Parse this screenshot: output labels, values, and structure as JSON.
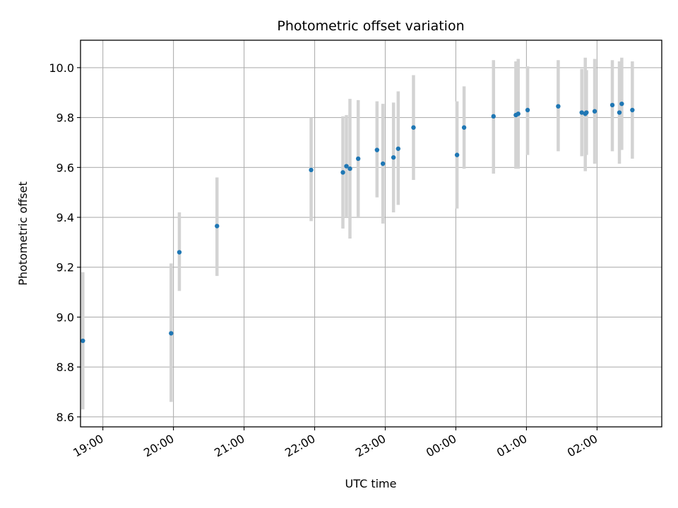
{
  "chart_data": {
    "type": "scatter",
    "title": "Photometric offset variation",
    "xlabel": "UTC time",
    "ylabel": "Photometric offset",
    "x_unit": "UTC datetime (night spanning midnight)",
    "xlim": [
      "18:41",
      "02:55(+1d)"
    ],
    "ylim": [
      8.56,
      10.11
    ],
    "xticks": [
      "19:00",
      "20:00",
      "21:00",
      "22:00",
      "23:00",
      "00:00",
      "01:00",
      "02:00"
    ],
    "yticks": [
      "8.6",
      "8.8",
      "9.0",
      "9.2",
      "9.4",
      "9.6",
      "9.8",
      "10.0"
    ],
    "grid": true,
    "point_color": "#1f77b4",
    "errorbar_color": "#d3d3d3",
    "points": [
      {
        "t": "18:43",
        "y": 8.905,
        "lo": 8.63,
        "hi": 9.18
      },
      {
        "t": "19:58",
        "y": 8.935,
        "lo": 8.66,
        "hi": 9.215
      },
      {
        "t": "20:05",
        "y": 9.26,
        "lo": 9.105,
        "hi": 9.42
      },
      {
        "t": "20:37",
        "y": 9.365,
        "lo": 9.165,
        "hi": 9.56
      },
      {
        "t": "21:57",
        "y": 9.59,
        "lo": 9.385,
        "hi": 9.8
      },
      {
        "t": "22:24",
        "y": 9.58,
        "lo": 9.355,
        "hi": 9.805
      },
      {
        "t": "22:27",
        "y": 9.605,
        "lo": 9.4,
        "hi": 9.81
      },
      {
        "t": "22:30",
        "y": 9.595,
        "lo": 9.315,
        "hi": 9.875
      },
      {
        "t": "22:37",
        "y": 9.635,
        "lo": 9.4,
        "hi": 9.87
      },
      {
        "t": "22:53",
        "y": 9.67,
        "lo": 9.48,
        "hi": 9.865
      },
      {
        "t": "22:58",
        "y": 9.615,
        "lo": 9.375,
        "hi": 9.855
      },
      {
        "t": "23:07",
        "y": 9.64,
        "lo": 9.42,
        "hi": 9.86
      },
      {
        "t": "23:11",
        "y": 9.675,
        "lo": 9.45,
        "hi": 9.905
      },
      {
        "t": "23:24",
        "y": 9.76,
        "lo": 9.55,
        "hi": 9.97
      },
      {
        "t": "00:01",
        "y": 9.65,
        "lo": 9.435,
        "hi": 9.865
      },
      {
        "t": "00:07",
        "y": 9.76,
        "lo": 9.595,
        "hi": 9.925
      },
      {
        "t": "00:32",
        "y": 9.805,
        "lo": 9.575,
        "hi": 10.03
      },
      {
        "t": "00:51",
        "y": 9.81,
        "lo": 9.595,
        "hi": 10.025
      },
      {
        "t": "00:53",
        "y": 9.815,
        "lo": 9.595,
        "hi": 10.035
      },
      {
        "t": "01:01",
        "y": 9.83,
        "lo": 9.65,
        "hi": 10.005
      },
      {
        "t": "01:27",
        "y": 9.845,
        "lo": 9.665,
        "hi": 10.03
      },
      {
        "t": "01:47",
        "y": 9.82,
        "lo": 9.645,
        "hi": 9.995
      },
      {
        "t": "01:50",
        "y": 9.815,
        "lo": 9.585,
        "hi": 10.04
      },
      {
        "t": "01:51",
        "y": 9.82,
        "lo": 9.65,
        "hi": 9.99
      },
      {
        "t": "01:58",
        "y": 9.825,
        "lo": 9.615,
        "hi": 10.035
      },
      {
        "t": "02:13",
        "y": 9.85,
        "lo": 9.665,
        "hi": 10.03
      },
      {
        "t": "02:19",
        "y": 9.82,
        "lo": 9.615,
        "hi": 10.025
      },
      {
        "t": "02:21",
        "y": 9.855,
        "lo": 9.67,
        "hi": 10.04
      },
      {
        "t": "02:30",
        "y": 9.83,
        "lo": 9.635,
        "hi": 10.025
      }
    ]
  }
}
